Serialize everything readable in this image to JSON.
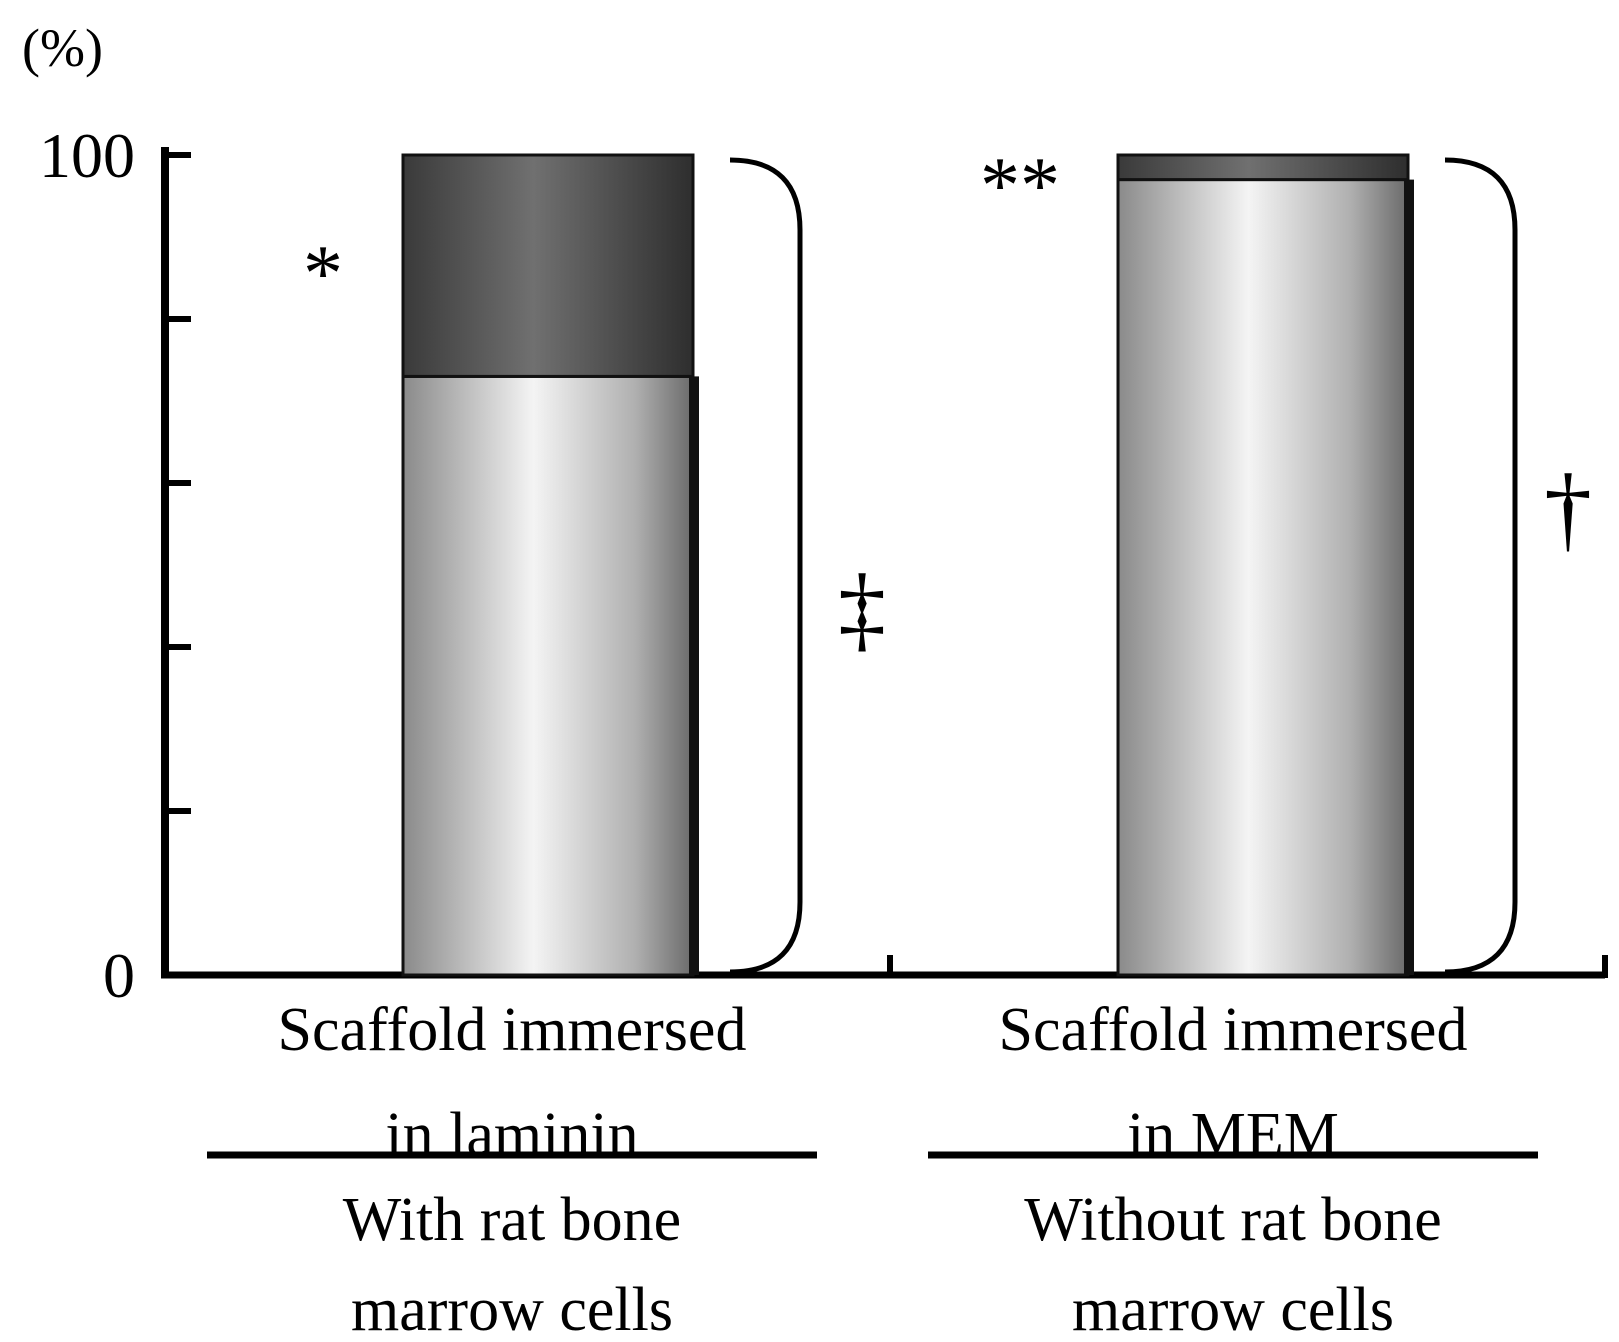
{
  "chart_data": {
    "type": "bar",
    "stacked": true,
    "ylabel": "(%)",
    "ylim": [
      0,
      100
    ],
    "yticks": [
      0,
      20,
      40,
      60,
      80,
      100
    ],
    "ytick_labels": [
      "0",
      "",
      "",
      "",
      "",
      "100"
    ],
    "grid": false,
    "categories": [
      {
        "label_lines": [
          "Scaffold immersed",
          "in laminin"
        ]
      },
      {
        "label_lines": [
          "Scaffold immersed",
          "in MEM"
        ]
      }
    ],
    "groups": [
      {
        "label_lines": [
          "With rat bone",
          "marrow cells"
        ]
      },
      {
        "label_lines": [
          "Without rat bone",
          "marrow cells"
        ]
      }
    ],
    "series": [
      {
        "values": [
          73,
          97
        ],
        "color": "#c8c8c8"
      },
      {
        "values": [
          27,
          3
        ],
        "color": "#4a4a4a"
      }
    ],
    "annotations": {
      "bar1_top": "*",
      "bar2_top": "**",
      "bracket1": "‡",
      "bracket2": "†"
    }
  }
}
